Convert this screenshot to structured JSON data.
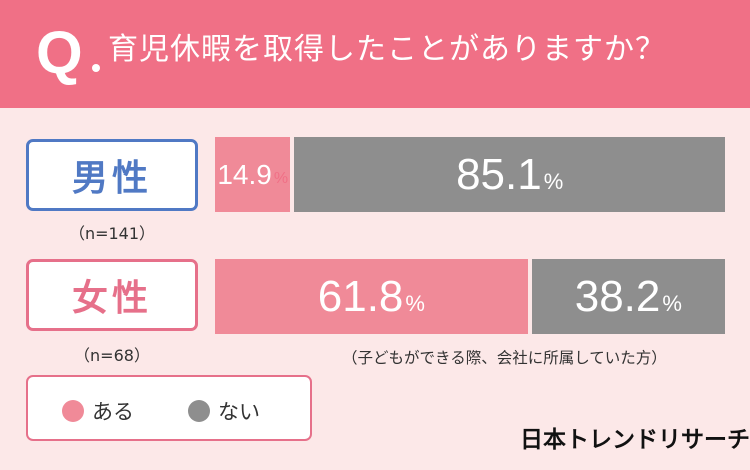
{
  "header": {
    "q": "Q",
    "question": "育児休暇を取得したことがありますか？"
  },
  "colors": {
    "header": "#f07086",
    "yes": "#f08a98",
    "no": "#8e8e8e",
    "male": "#5079c4",
    "female": "#e6708a"
  },
  "rows": [
    {
      "label": "男性",
      "n": "（n=141）"
    },
    {
      "label": "女性",
      "n": "（n=68）"
    }
  ],
  "note": "（子どもができる際、会社に所属していた方）",
  "legend": {
    "yes": "ある",
    "no": "ない"
  },
  "brand": "日本トレンドリサーチ",
  "chart_data": {
    "type": "bar",
    "orientation": "horizontal",
    "stacked": true,
    "normalized": true,
    "categories": [
      "男性",
      "女性"
    ],
    "unit": "%",
    "series": [
      {
        "name": "ある",
        "values": [
          14.9,
          61.8
        ],
        "labels": [
          "14.9",
          "61.8"
        ]
      },
      {
        "name": "ない",
        "values": [
          85.1,
          38.2
        ],
        "labels": [
          "85.1",
          "38.2"
        ]
      }
    ]
  }
}
